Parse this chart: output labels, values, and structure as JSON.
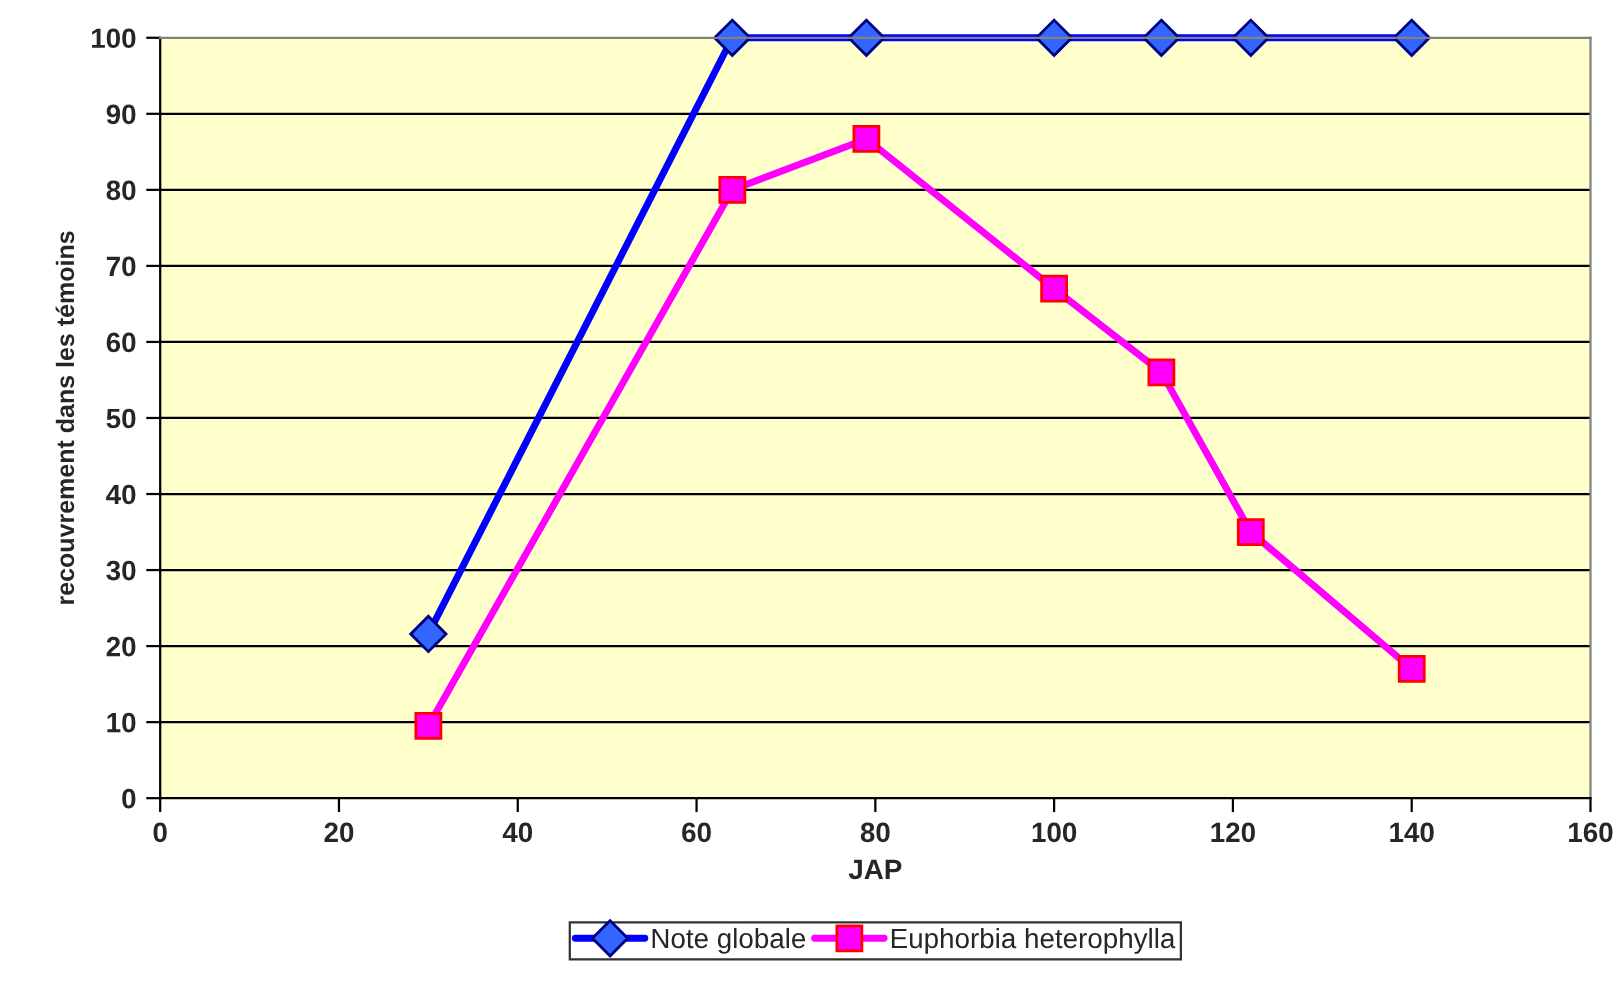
{
  "chart_data": {
    "type": "line",
    "xlabel": "JAP",
    "ylabel": "recouvrement dans les témoins",
    "xlim": [
      0,
      160
    ],
    "xticks": [
      0,
      20,
      40,
      60,
      80,
      100,
      120,
      140,
      160
    ],
    "ylim": [
      0,
      100
    ],
    "yticks": [
      0,
      10,
      20,
      30,
      40,
      50,
      60,
      70,
      80,
      90,
      100
    ],
    "grid": "y",
    "legend": "bottom",
    "series": [
      {
        "name": "Note globale",
        "color": "#0000ff",
        "marker": "diamond",
        "x": [
          30,
          64,
          79,
          100,
          112,
          122,
          140
        ],
        "values": [
          21.6,
          100,
          100,
          100,
          100,
          100,
          100
        ]
      },
      {
        "name": "Euphorbia heterophylla",
        "color": "#ff00ff",
        "marker": "square",
        "x": [
          30,
          64,
          79,
          100,
          112,
          122,
          140
        ],
        "values": [
          9.5,
          80,
          86.7,
          67,
          56,
          35,
          17
        ]
      }
    ]
  }
}
